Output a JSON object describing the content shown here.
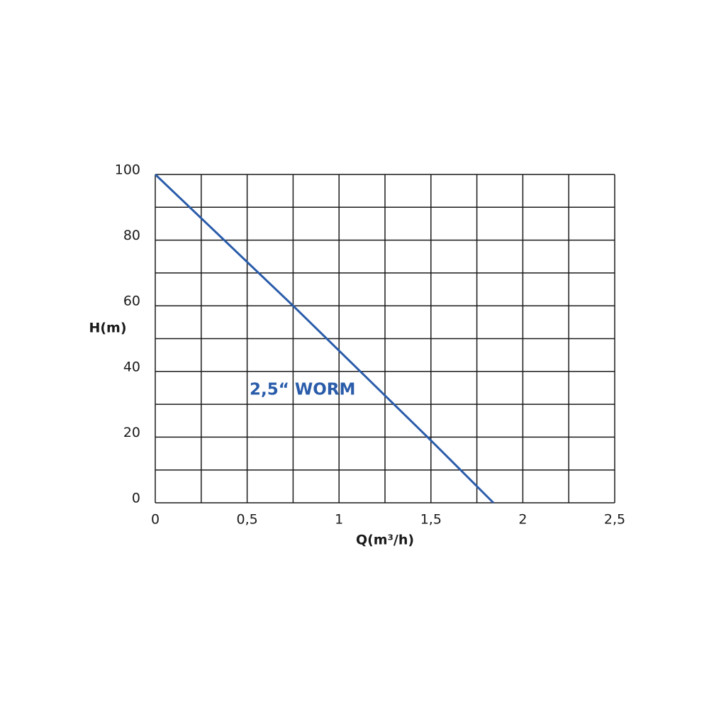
{
  "chart_data": {
    "type": "line",
    "x_label": "Q(m³/h)",
    "y_label": "H(m)",
    "x": [
      0,
      0.75,
      1.5,
      1.84
    ],
    "series": [
      {
        "name": "2,5“ WORM",
        "color": "#2a5caa",
        "values": [
          100,
          60,
          19,
          0
        ]
      }
    ],
    "xlim": [
      0,
      2.5
    ],
    "ylim": [
      0,
      100
    ],
    "xticks": [
      0,
      {
        "value": 0.5,
        "label": "0,5"
      },
      1,
      {
        "value": 1.5,
        "label": "1,5"
      },
      2,
      {
        "value": 2.5,
        "label": "2,5"
      }
    ],
    "yticks": [
      0,
      20,
      40,
      60,
      80,
      100
    ],
    "x_minor_grid": [
      0.25,
      0.75,
      1.25,
      1.75,
      2.25
    ],
    "y_minor_grid": [
      10,
      30,
      50,
      70,
      90
    ],
    "grid": true,
    "legend": "inline"
  }
}
